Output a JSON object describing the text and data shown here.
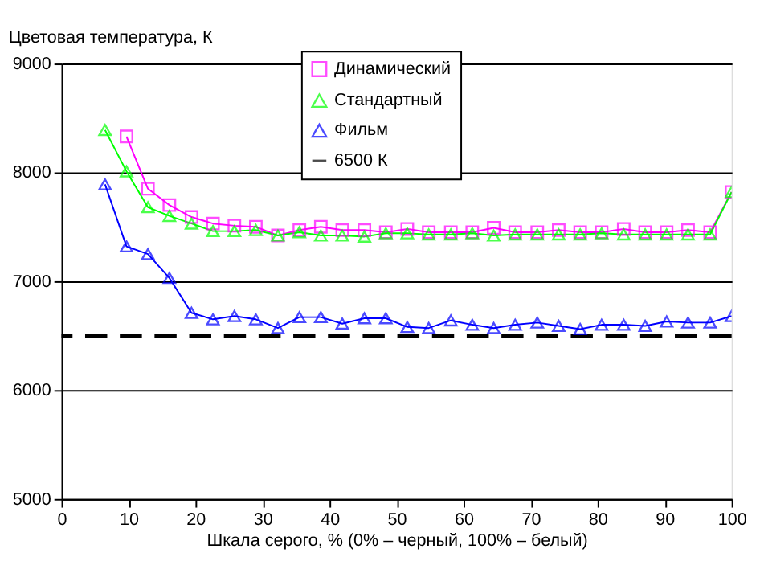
{
  "chart_data": {
    "type": "line",
    "xlabel": "Шкала серого, % (0% – черный, 100% – белый)",
    "ylabel": "Цветовая температура, К",
    "x": [
      6.5,
      9.7,
      12.9,
      16.1,
      19.4,
      22.6,
      25.8,
      29.0,
      32.3,
      35.5,
      38.7,
      41.9,
      45.2,
      48.4,
      51.6,
      54.8,
      58.1,
      61.3,
      64.5,
      67.7,
      71.0,
      74.2,
      77.4,
      80.6,
      83.9,
      87.1,
      90.3,
      93.5,
      96.8,
      100
    ],
    "series": [
      {
        "name": "Динамический",
        "color": "#ff00ff",
        "marker": "square",
        "values": [
          null,
          8330,
          7850,
          7700,
          7590,
          7530,
          7510,
          7500,
          7420,
          7470,
          7500,
          7470,
          7470,
          7450,
          7480,
          7450,
          7450,
          7450,
          7490,
          7450,
          7450,
          7470,
          7450,
          7450,
          7480,
          7450,
          7450,
          7470,
          7450,
          7820
        ]
      },
      {
        "name": "Стандартный",
        "color": "#00ff00",
        "marker": "triangle",
        "values": [
          8390,
          8010,
          7680,
          7600,
          7530,
          7460,
          7460,
          7470,
          7420,
          7450,
          7420,
          7420,
          7410,
          7440,
          7440,
          7430,
          7430,
          7440,
          7420,
          7430,
          7430,
          7430,
          7430,
          7440,
          7430,
          7430,
          7430,
          7430,
          7430,
          7820
        ]
      },
      {
        "name": "Фильм",
        "color": "#0000ff",
        "marker": "triangle",
        "values": [
          7890,
          7320,
          7250,
          7030,
          6710,
          6650,
          6680,
          6650,
          6570,
          6670,
          6670,
          6610,
          6660,
          6660,
          6580,
          6570,
          6640,
          6600,
          6570,
          6600,
          6620,
          6590,
          6560,
          6600,
          6600,
          6590,
          6630,
          6620,
          6620,
          6680
        ]
      }
    ],
    "ref_lines": [
      {
        "axis": "y",
        "value": 6500,
        "label": "6500 К",
        "color": "#000000",
        "line_style": "dashed"
      }
    ],
    "xlim": [
      0,
      100
    ],
    "xticks": [
      0,
      10,
      20,
      30,
      40,
      50,
      60,
      70,
      80,
      90,
      100
    ],
    "ylim": [
      5000,
      9000
    ],
    "yticks": [
      5000,
      6000,
      7000,
      8000,
      9000
    ],
    "grid": "y",
    "legend": "top right"
  }
}
